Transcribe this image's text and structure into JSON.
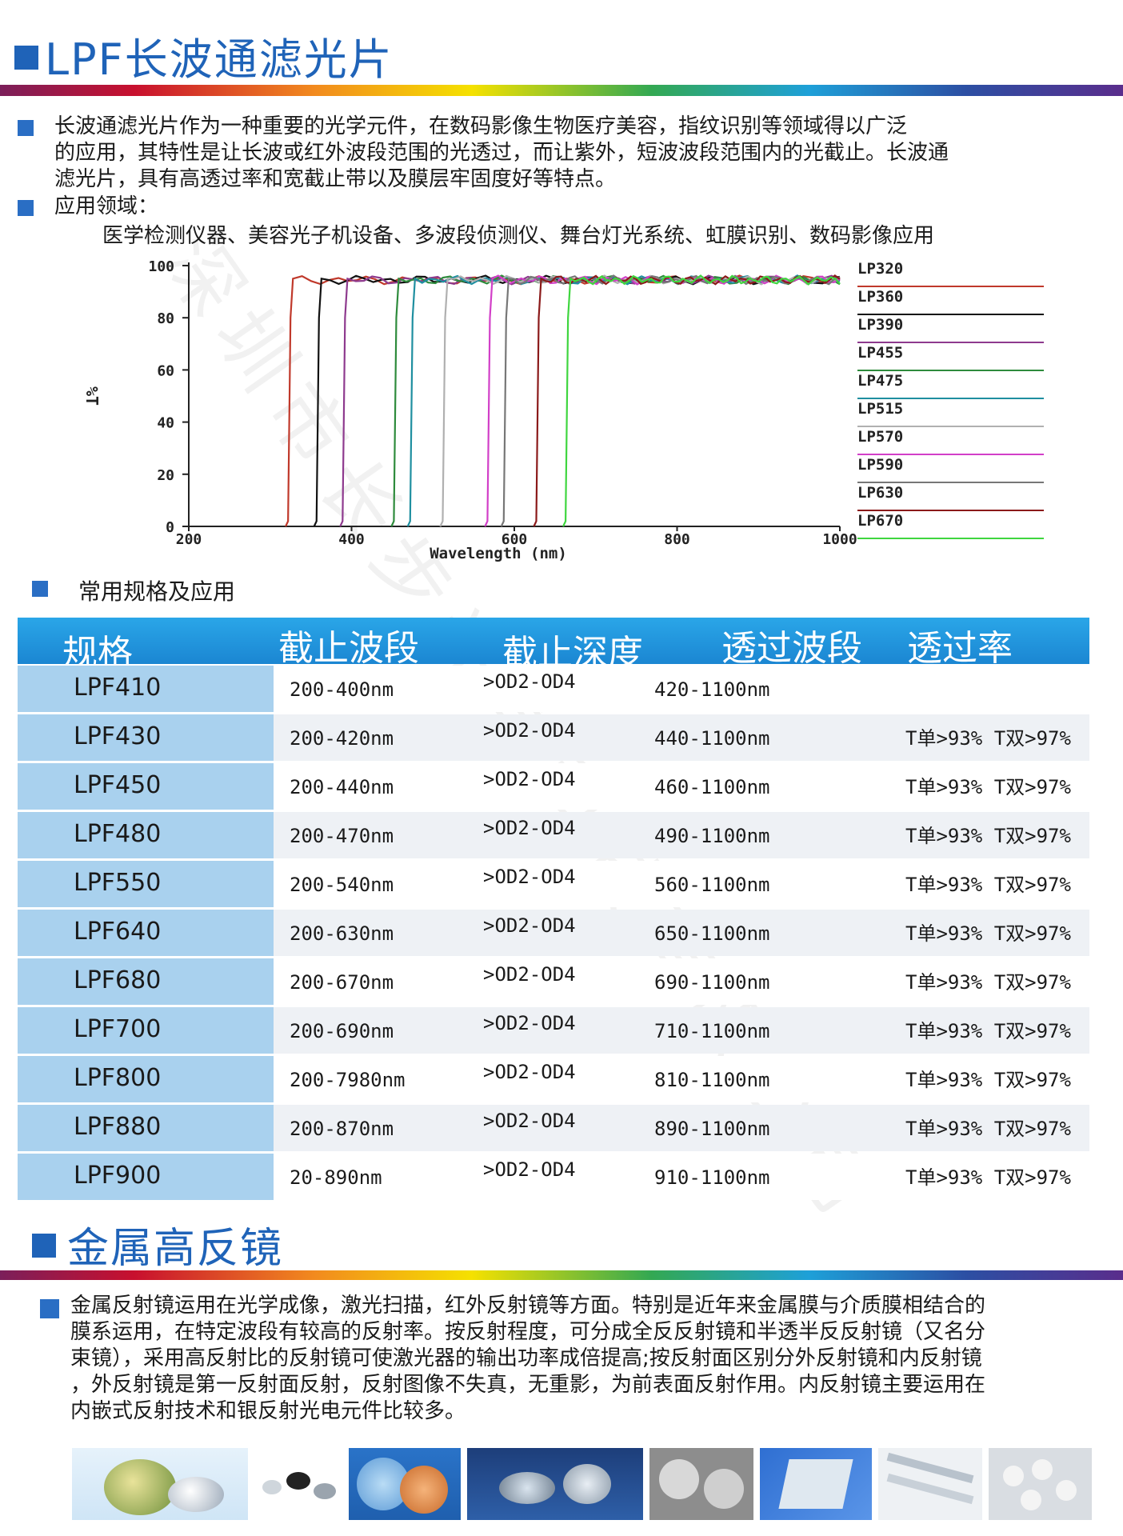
{
  "section1": {
    "title": "LPF长波通滤光片",
    "intro": [
      "长波通滤光片作为一种重要的光学元件，在数码影像生物医疗美容，指纹识别等领域得以广泛",
      "的应用，其特性是让长波或红外波段范围的光透过，而让紫外，短波波段范围内的光截止。长波通",
      "滤光片，具有高透过率和宽截止带以及膜层牢固度好等特点。"
    ],
    "apps_label": "应用领域：",
    "apps_text": "医学检测仪器、美容光子机设备、多波段侦测仪、舞台灯光系统、虹膜识别、数码影像应用"
  },
  "chart_data": {
    "type": "line",
    "xlabel": "Wavelength (nm)",
    "ylabel": "%T",
    "xlim": [
      200,
      1000
    ],
    "ylim": [
      0,
      100
    ],
    "xticks": [
      "200",
      "400",
      "600",
      "800",
      "1000"
    ],
    "yticks": [
      "0",
      "20",
      "40",
      "60",
      "80",
      "100"
    ],
    "legend_position": "right",
    "series": [
      {
        "name": "LP320",
        "color": "#c0392b",
        "cut_on": 325
      },
      {
        "name": "LP360",
        "color": "#111111",
        "cut_on": 360
      },
      {
        "name": "LP390",
        "color": "#8e3a8e",
        "cut_on": 392
      },
      {
        "name": "LP455",
        "color": "#2e8b3c",
        "cut_on": 455
      },
      {
        "name": "LP475",
        "color": "#1f8fa0",
        "cut_on": 475
      },
      {
        "name": "LP515",
        "color": "#b0b0b0",
        "cut_on": 515
      },
      {
        "name": "LP570",
        "color": "#d23fc8",
        "cut_on": 570
      },
      {
        "name": "LP590",
        "color": "#777777",
        "cut_on": 590
      },
      {
        "name": "LP630",
        "color": "#8b1a1a",
        "cut_on": 630
      },
      {
        "name": "LP670",
        "color": "#3fd63f",
        "cut_on": 666
      }
    ]
  },
  "specs": {
    "heading": "常用规格及应用",
    "headers": [
      "规格",
      "截止波段",
      "截止深度",
      "透过波段",
      "透过率"
    ],
    "rows": [
      {
        "model": "LPF410",
        "cut": "200-400nm",
        "depth": ">OD2-OD4",
        "pass": "420-1100nm",
        "trans": ""
      },
      {
        "model": "LPF430",
        "cut": "200-420nm",
        "depth": ">OD2-OD4",
        "pass": "440-1100nm",
        "trans": "T单>93% T双>97%"
      },
      {
        "model": "LPF450",
        "cut": "200-440nm",
        "depth": ">OD2-OD4",
        "pass": "460-1100nm",
        "trans": "T单>93% T双>97%"
      },
      {
        "model": "LPF480",
        "cut": "200-470nm",
        "depth": ">OD2-OD4",
        "pass": "490-1100nm",
        "trans": "T单>93% T双>97%"
      },
      {
        "model": "LPF550",
        "cut": "200-540nm",
        "depth": ">OD2-OD4",
        "pass": "560-1100nm",
        "trans": "T单>93% T双>97%"
      },
      {
        "model": "LPF640",
        "cut": "200-630nm",
        "depth": ">OD2-OD4",
        "pass": "650-1100nm",
        "trans": "T单>93% T双>97%"
      },
      {
        "model": "LPF680",
        "cut": "200-670nm",
        "depth": ">OD2-OD4",
        "pass": "690-1100nm",
        "trans": "T单>93% T双>97%"
      },
      {
        "model": "LPF700",
        "cut": "200-690nm",
        "depth": ">OD2-OD4",
        "pass": "710-1100nm",
        "trans": "T单>93% T双>97%"
      },
      {
        "model": "LPF800",
        "cut": "200-7980nm",
        "depth": ">OD2-OD4",
        "pass": "810-1100nm",
        "trans": "T单>93% T双>97%"
      },
      {
        "model": "LPF880",
        "cut": "200-870nm",
        "depth": ">OD2-OD4",
        "pass": "890-1100nm",
        "trans": "T单>93% T双>97%"
      },
      {
        "model": "LPF900",
        "cut": "20-890nm",
        "depth": ">OD2-OD4",
        "pass": "910-1100nm",
        "trans": "T单>93% T双>97%"
      }
    ]
  },
  "section2": {
    "title": "金属高反镜",
    "body": [
      "金属反射镜运用在光学成像，激光扫描，红外反射镜等方面。特别是近年来金属膜与介质膜相结合的",
      "膜系运用，在特定波段有较高的反射率。按反射程度，可分成全反反射镜和半透半反反射镜（又名分",
      "束镜），采用高反射比的反射镜可使激光器的输出功率成倍提高;按反射面区别分外反射镜和内反射镜",
      "，外反射镜是第一反射面反射，反射图像不失真，无重影，为前表面反射作用。内反射镜主要运用在",
      "内嵌式反射技术和银反射光电元件比较多。"
    ]
  },
  "watermark": "深圳市长步光学科技有限公司"
}
